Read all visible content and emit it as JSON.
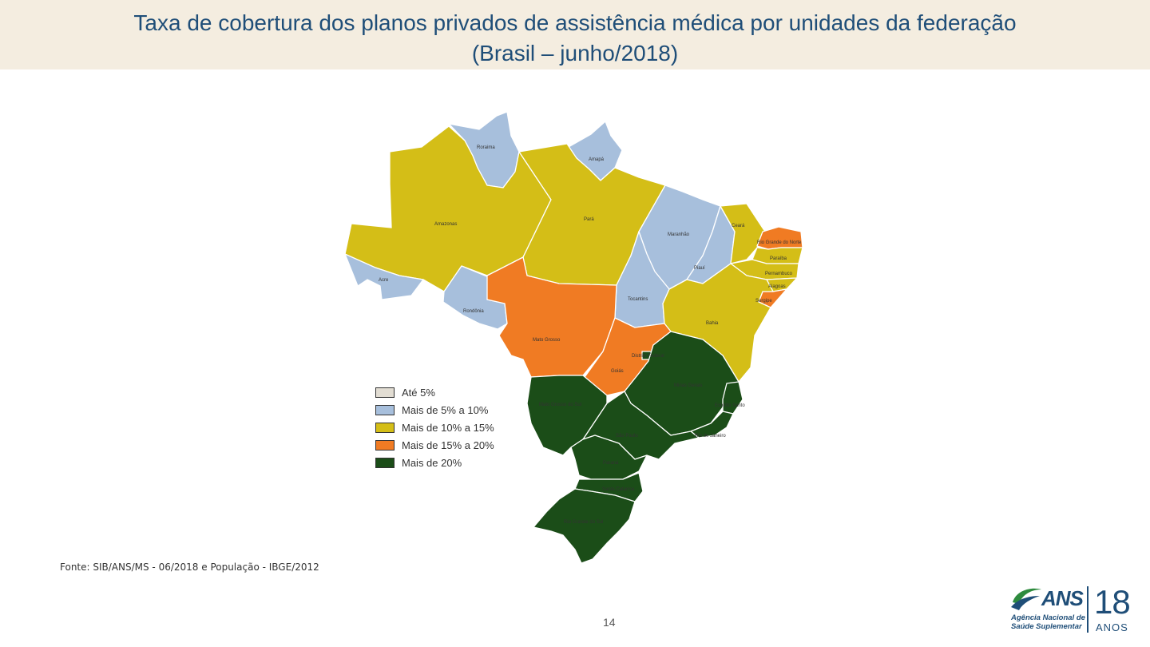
{
  "header": {
    "title_line1": "Taxa de cobertura dos planos privados de assistência médica por unidades da federação",
    "title_line2": "(Brasil – junho/2018)"
  },
  "colors": {
    "ate_5": "#e2ddd3",
    "5_10": "#a7bfdc",
    "10_15": "#d4be17",
    "15_20": "#f07b23",
    "mais_20": "#1b4d18",
    "title": "#1f4e78",
    "band": "#f4ede0"
  },
  "legend": [
    {
      "label": "Até 5%",
      "color": "#e2ddd3"
    },
    {
      "label": "Mais de 5% a 10%",
      "color": "#a7bfdc"
    },
    {
      "label": "Mais de 10% a 15%",
      "color": "#d4be17"
    },
    {
      "label": "Mais de 15% a 20%",
      "color": "#f07b23"
    },
    {
      "label": "Mais de 20%",
      "color": "#1b4d18"
    }
  ],
  "states": {
    "roraima": {
      "name": "Roraima",
      "class": "5_10"
    },
    "amapa": {
      "name": "Amapá",
      "class": "5_10"
    },
    "amazonas": {
      "name": "Amazonas",
      "class": "10_15"
    },
    "para": {
      "name": "Pará",
      "class": "10_15"
    },
    "acre": {
      "name": "Acre",
      "class": "5_10"
    },
    "rondonia": {
      "name": "Rondônia",
      "class": "5_10"
    },
    "maranhao": {
      "name": "Maranhão",
      "class": "5_10"
    },
    "piaui": {
      "name": "Piauí",
      "class": "5_10"
    },
    "tocantins": {
      "name": "Tocantins",
      "class": "5_10"
    },
    "ceara": {
      "name": "Ceará",
      "class": "10_15"
    },
    "rio_grande_do_norte": {
      "name": "Rio Grande do Norte",
      "class": "15_20"
    },
    "paraiba": {
      "name": "Paraíba",
      "class": "10_15"
    },
    "pernambuco": {
      "name": "Pernambuco",
      "class": "10_15"
    },
    "alagoas": {
      "name": "Alagoas",
      "class": "10_15"
    },
    "sergipe": {
      "name": "Sergipe",
      "class": "15_20"
    },
    "bahia": {
      "name": "Bahia",
      "class": "10_15"
    },
    "mato_grosso": {
      "name": "Mato Grosso",
      "class": "15_20"
    },
    "goias": {
      "name": "Goiás",
      "class": "15_20"
    },
    "distrito_federal": {
      "name": "Distrito Federal",
      "class": "mais_20"
    },
    "minas_gerais": {
      "name": "Minas Gerais",
      "class": "mais_20"
    },
    "mato_grosso_do_sul": {
      "name": "Mato Grosso do Sul",
      "class": "mais_20"
    },
    "espirito_santo": {
      "name": "Espírito Santo",
      "class": "mais_20"
    },
    "sao_paulo": {
      "name": "São Paulo",
      "class": "mais_20"
    },
    "rio_de_janeiro": {
      "name": "Rio de Janeiro",
      "class": "mais_20"
    },
    "parana": {
      "name": "Paraná",
      "class": "mais_20"
    },
    "santa_catarina": {
      "name": "Santa Catarina",
      "class": "mais_20"
    },
    "rio_grande_do_sul": {
      "name": "Rio Grande do Sul",
      "class": "mais_20"
    }
  },
  "footer": {
    "source": "Fonte: SIB/ANS/MS - 06/2018 e População - IBGE/2012",
    "page_number": "14"
  },
  "logo": {
    "brand": "ANS",
    "subtitle_line1": "Agência Nacional de",
    "subtitle_line2": "Saúde Suplementar",
    "years_number": "18",
    "years_label": "ANOS"
  }
}
